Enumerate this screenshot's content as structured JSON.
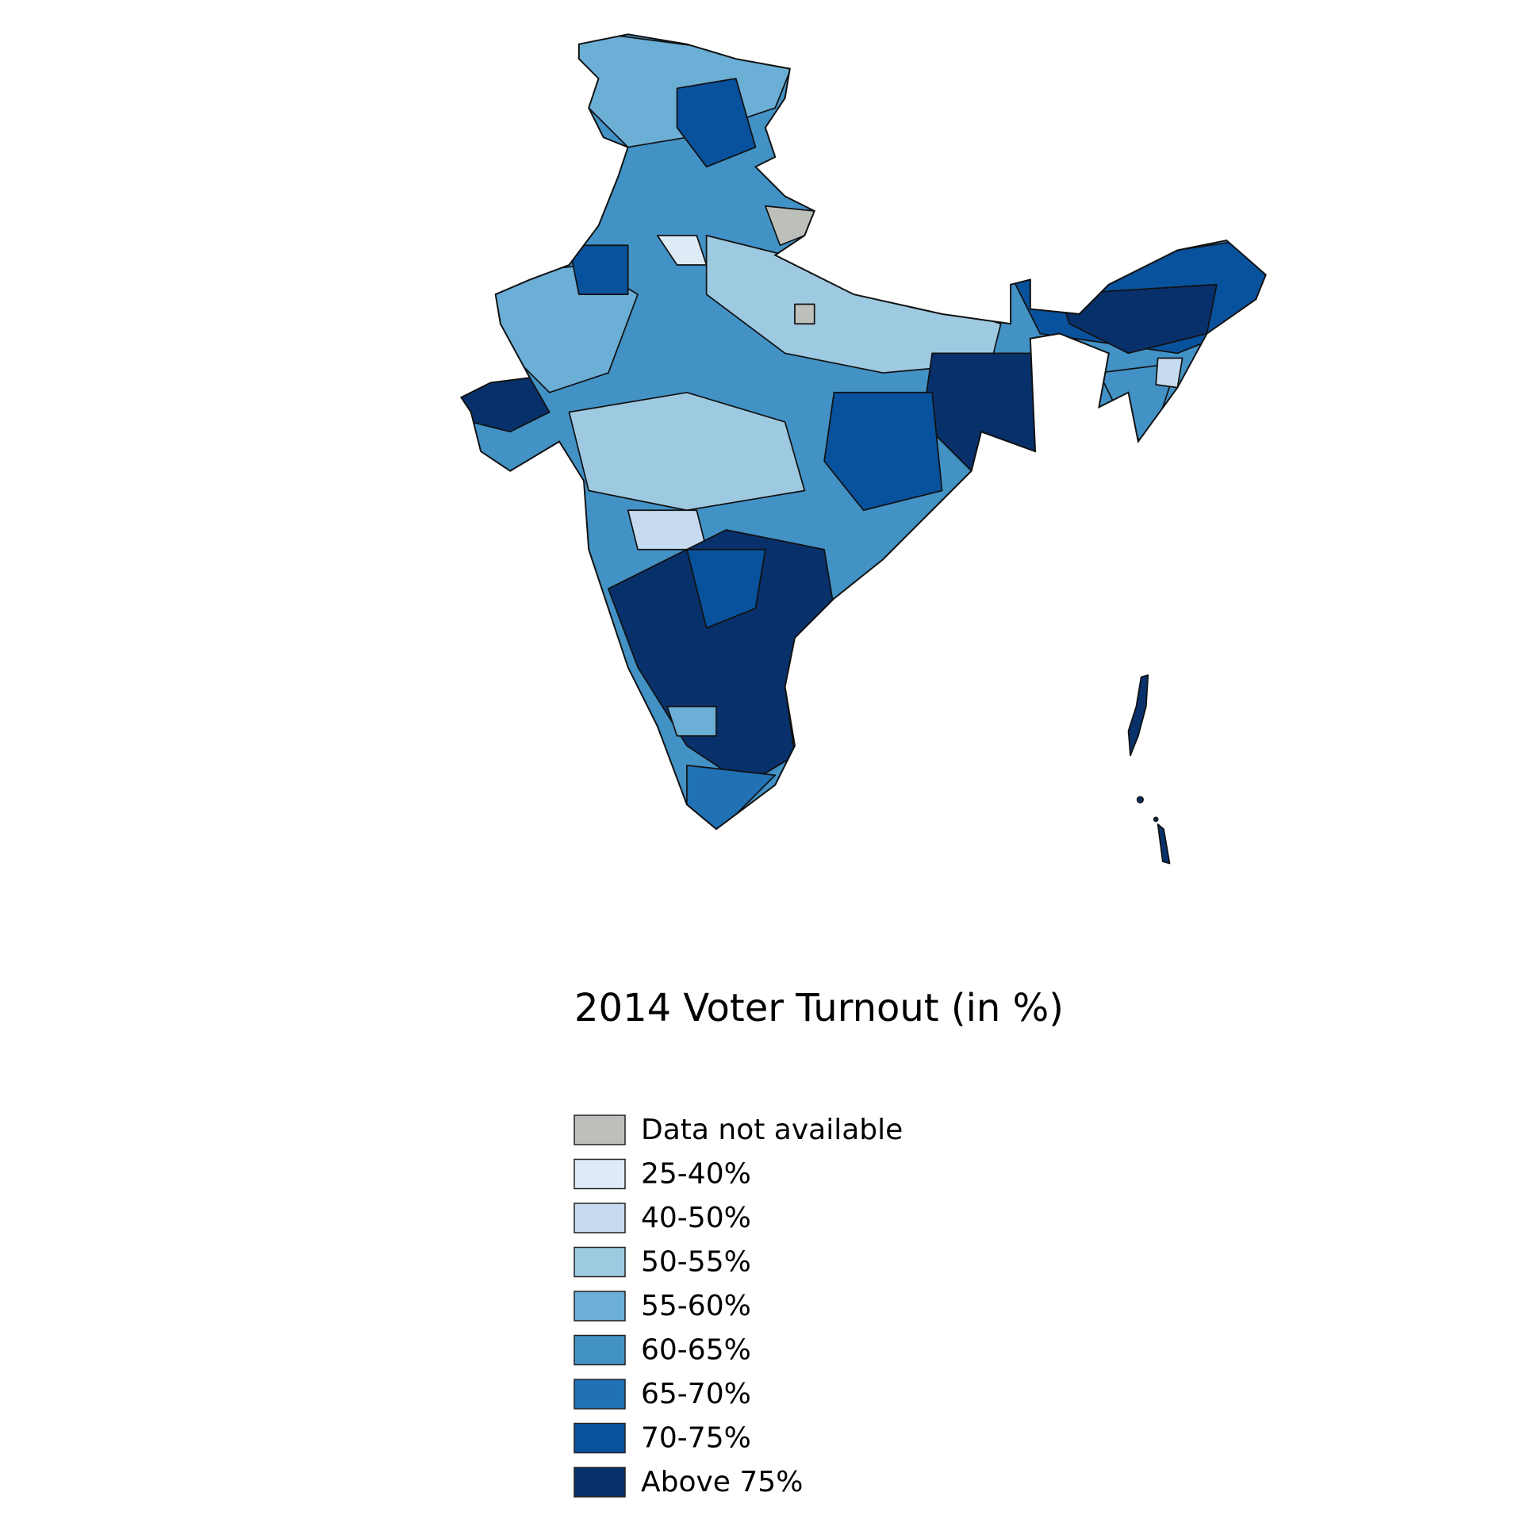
{
  "title": "2014 Voter Turnout (in %)",
  "legend": [
    {
      "label": "Data not available",
      "color": "#bdc0ba"
    },
    {
      "label": "25-40%",
      "color": "#deebf7"
    },
    {
      "label": "40-50%",
      "color": "#c6dbef"
    },
    {
      "label": "50-55%",
      "color": "#9ecae1"
    },
    {
      "label": "55-60%",
      "color": "#6baed6"
    },
    {
      "label": "60-65%",
      "color": "#4292c6"
    },
    {
      "label": "65-70%",
      "color": "#2171b5"
    },
    {
      "label": "70-75%",
      "color": "#08519c"
    },
    {
      "label": "Above 75%",
      "color": "#08306b"
    }
  ]
}
